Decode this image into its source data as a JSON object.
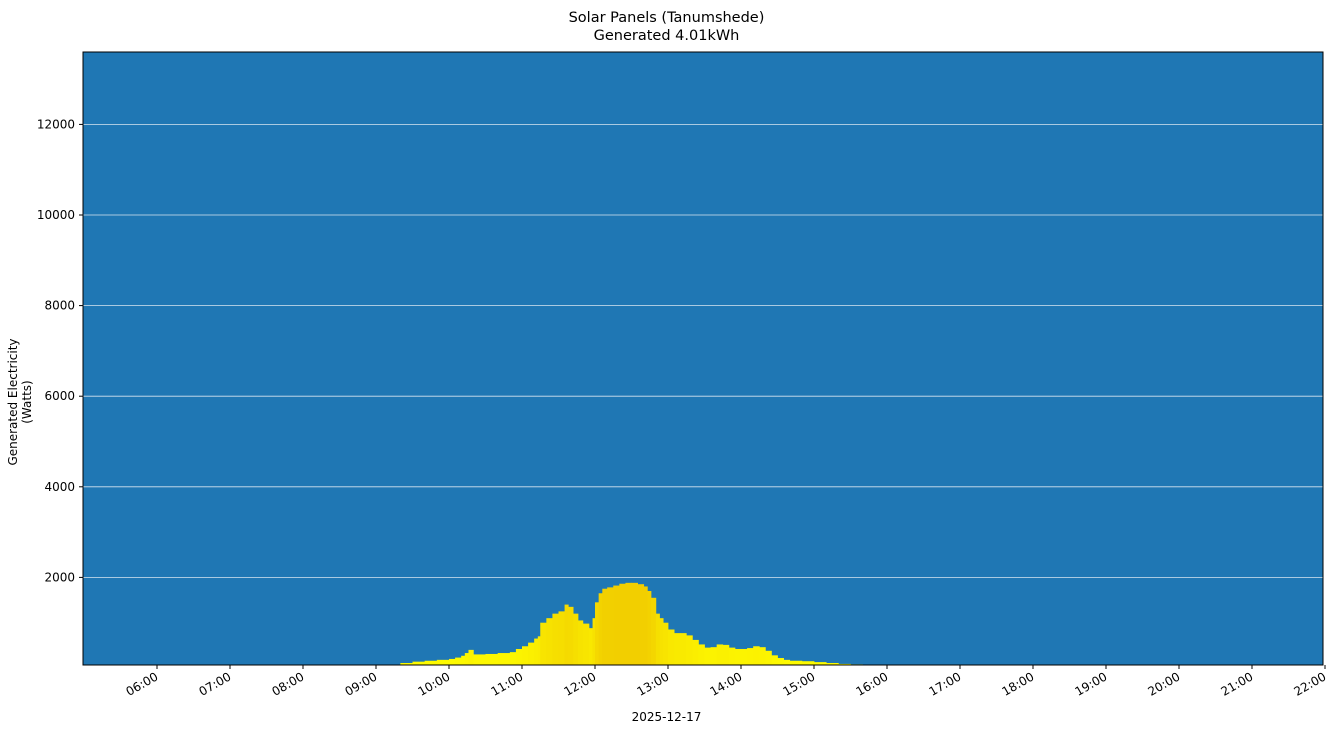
{
  "title": {
    "line1": "Solar Panels (Tanumshede)",
    "line2": "Generated 4.01kWh"
  },
  "axes": {
    "ylabel": "Generated Electricity (Watts)",
    "xlabel": "2025-12-17"
  },
  "colors": {
    "background": "#1f77b4",
    "grid": "#d8e6f0",
    "fill_low": "#ffff00",
    "fill_high": "#f2cf00"
  },
  "chart_data": {
    "type": "area",
    "title": "Solar Panels (Tanumshede)\nGenerated 4.01kWh",
    "xlabel": "2025-12-17",
    "ylabel": "Generated Electricity (Watts)",
    "xlim": [
      "05:15",
      "22:00"
    ],
    "ylim": [
      0,
      13550
    ],
    "grid": {
      "y": true,
      "x": false
    },
    "xticks": [
      "06:00",
      "07:00",
      "08:00",
      "09:00",
      "10:00",
      "11:00",
      "12:00",
      "13:00",
      "14:00",
      "15:00",
      "16:00",
      "17:00",
      "18:00",
      "19:00",
      "20:00",
      "21:00",
      "22:00"
    ],
    "yticks": [
      2000,
      4000,
      6000,
      8000,
      10000,
      12000
    ],
    "series": [
      {
        "name": "Generated Electricity",
        "x": [
          "09:10",
          "09:20",
          "09:30",
          "09:40",
          "09:50",
          "10:00",
          "10:05",
          "10:10",
          "10:13",
          "10:16",
          "10:20",
          "10:30",
          "10:40",
          "10:50",
          "10:55",
          "11:00",
          "11:05",
          "11:10",
          "11:13",
          "11:15",
          "11:20",
          "11:25",
          "11:30",
          "11:35",
          "11:38",
          "11:42",
          "11:46",
          "11:50",
          "11:55",
          "11:58",
          "12:00",
          "12:03",
          "12:06",
          "12:10",
          "12:15",
          "12:20",
          "12:25",
          "12:30",
          "12:35",
          "12:40",
          "12:43",
          "12:46",
          "12:50",
          "12:53",
          "12:56",
          "13:00",
          "13:05",
          "13:10",
          "13:15",
          "13:20",
          "13:25",
          "13:30",
          "13:35",
          "13:40",
          "13:45",
          "13:50",
          "13:55",
          "14:00",
          "14:05",
          "14:10",
          "14:15",
          "14:20",
          "14:25",
          "14:30",
          "14:35",
          "14:40",
          "14:50",
          "15:00",
          "15:10",
          "15:20",
          "15:30",
          "15:40",
          "15:50",
          "16:00",
          "16:10",
          "16:20"
        ],
        "values": [
          60,
          110,
          140,
          160,
          180,
          200,
          230,
          270,
          330,
          400,
          300,
          310,
          330,
          350,
          420,
          480,
          560,
          650,
          700,
          1000,
          1100,
          1200,
          1250,
          1400,
          1350,
          1200,
          1050,
          980,
          880,
          1100,
          1450,
          1650,
          1750,
          1780,
          1820,
          1860,
          1880,
          1880,
          1850,
          1800,
          1700,
          1550,
          1200,
          1100,
          1000,
          850,
          770,
          770,
          720,
          620,
          520,
          450,
          460,
          520,
          510,
          450,
          420,
          420,
          440,
          480,
          460,
          380,
          280,
          220,
          180,
          160,
          150,
          130,
          110,
          90,
          80,
          60,
          40,
          30,
          25,
          20
        ]
      }
    ]
  }
}
